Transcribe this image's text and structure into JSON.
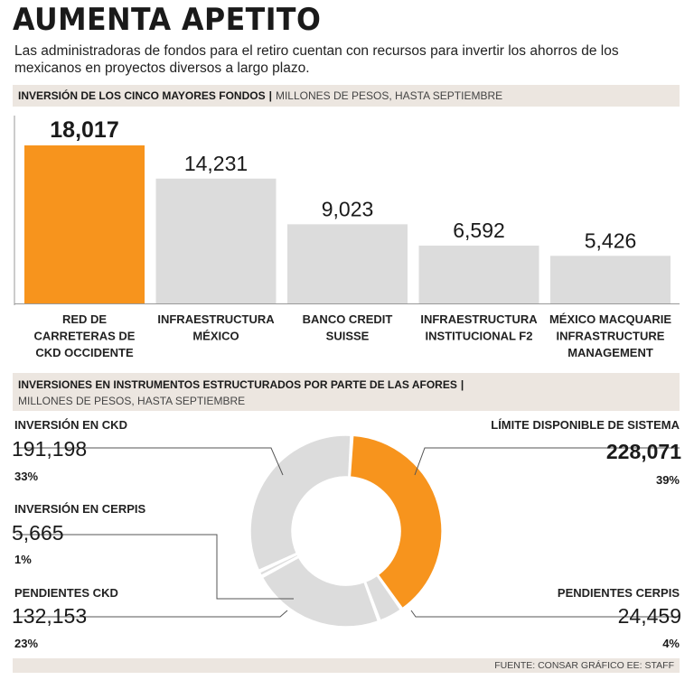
{
  "title": "AUMENTA APETITO",
  "subtitle": "Las administradoras de fondos para el retiro cuentan con recursos para invertir los ahorros de los mexicanos en proyectos diversos a largo plazo.",
  "section1": {
    "heading": "INVERSIÓN DE LOS CINCO MAYORES FONDOS",
    "separator": "|",
    "units": "MILLONES DE PESOS, HASTA SEPTIEMBRE"
  },
  "section2": {
    "heading": "INVERSIONES EN INSTRUMENTOS ESTRUCTURADOS POR PARTE DE LAS AFORES",
    "separator": "|",
    "units": "MILLONES DE PESOS, HASTA SEPTIEMBRE"
  },
  "source": "FUENTE: CONSAR GRÁFICO EE: STAFF",
  "colors": {
    "highlight": "#f7941d",
    "neutral": "#dcdcdc",
    "leader": "#555555"
  },
  "chart_data": [
    {
      "type": "bar",
      "title": "INVERSIÓN DE LOS CINCO MAYORES FONDOS",
      "ylabel": "MILLONES DE PESOS, HASTA SEPTIEMBRE",
      "categories": [
        "RED DE CARRETERAS DE CKD OCCIDENTE",
        "INFRAESTRUCTURA MÉXICO",
        "BANCO CREDIT SUISSE",
        "INFRAESTRUCTURA INSTITUCIONAL F2",
        "MÉXICO MACQUARIE INFRASTRUCTURE MANAGEMENT"
      ],
      "category_lines": [
        [
          "RED DE",
          "CARRETERAS DE",
          "CKD OCCIDENTE"
        ],
        [
          "INFRAESTRUCTURA",
          "MÉXICO"
        ],
        [
          "BANCO CREDIT",
          "SUISSE"
        ],
        [
          "INFRAESTRUCTURA",
          "INSTITUCIONAL F2"
        ],
        [
          "MÉXICO MACQUARIE",
          "INFRASTRUCTURE",
          "MANAGEMENT"
        ]
      ],
      "values": [
        18017,
        14231,
        9023,
        6592,
        5426
      ],
      "value_labels": [
        "18,017",
        "14,231",
        "9,023",
        "6,592",
        "5,426"
      ],
      "highlight_index": 0,
      "ylim": [
        0,
        18017
      ]
    },
    {
      "type": "pie",
      "title": "INVERSIONES EN INSTRUMENTOS ESTRUCTURADOS POR PARTE DE LAS AFORES",
      "slices": [
        {
          "name": "LÍMITE DISPONIBLE DE SISTEMA",
          "value": 228071,
          "label": "228,071",
          "pct": "39%",
          "highlight": true
        },
        {
          "name": "PENDIENTES CERPIS",
          "value": 24459,
          "label": "24,459",
          "pct": "4%",
          "highlight": false
        },
        {
          "name": "PENDIENTES CKD",
          "value": 132153,
          "label": "132,153",
          "pct": "23%",
          "highlight": false
        },
        {
          "name": "INVERSIÓN EN CERPIS",
          "value": 5665,
          "label": "5,665",
          "pct": "1%",
          "highlight": false
        },
        {
          "name": "INVERSIÓN EN CKD",
          "value": 191198,
          "label": "191,198",
          "pct": "33%",
          "highlight": false
        }
      ]
    }
  ]
}
